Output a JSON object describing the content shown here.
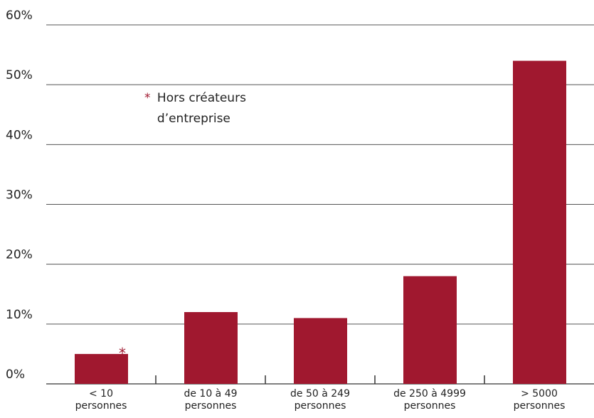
{
  "chart_data": {
    "type": "bar",
    "categories": [
      "< 10\npersonnes",
      "de 10 à 49\npersonnes",
      "de 50 à 249\npersonnes",
      "de 250 à 4999\npersonnes",
      "> 5000\npersonnes"
    ],
    "values": [
      5,
      12,
      11,
      18,
      54
    ],
    "color": "#a0182f",
    "ylim": [
      0,
      60
    ],
    "yticks": [
      {
        "value": 0,
        "label": "0%"
      },
      {
        "value": 10,
        "label": "10%"
      },
      {
        "value": 20,
        "label": "20%"
      },
      {
        "value": 30,
        "label": "30%"
      },
      {
        "value": 40,
        "label": "40%"
      },
      {
        "value": 50,
        "label": "50%"
      },
      {
        "value": 60,
        "label": "60%"
      }
    ],
    "grid": true,
    "annotations": {
      "marker": "*",
      "note": "Hors créateurs\nd’entreprise"
    }
  }
}
